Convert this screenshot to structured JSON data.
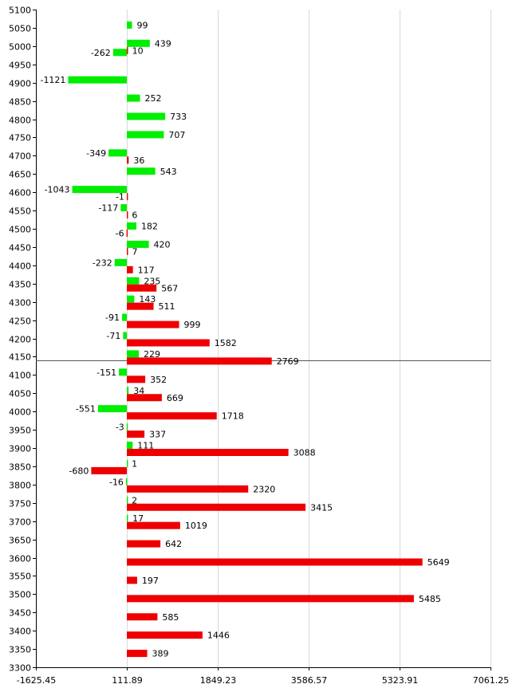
{
  "chart_data": {
    "type": "bar",
    "orientation": "horizontal",
    "grid": true,
    "xlim": [
      -1625.45,
      7061.25
    ],
    "ylim": [
      3300,
      5100
    ],
    "x_ticks": [
      "-1625.45",
      "111.89",
      "1849.23",
      "3586.57",
      "5323.91",
      "7061.25"
    ],
    "x_tick_values": [
      -1625.45,
      111.89,
      1849.23,
      3586.57,
      5323.91,
      7061.25
    ],
    "y_ticks": [
      5100,
      5050,
      5000,
      4950,
      4900,
      4850,
      4800,
      4750,
      4700,
      4650,
      4600,
      4550,
      4500,
      4450,
      4400,
      4350,
      4300,
      4250,
      4200,
      4150,
      4100,
      4050,
      4000,
      3950,
      3900,
      3850,
      3800,
      3750,
      3700,
      3650,
      3600,
      3550,
      3500,
      3450,
      3400,
      3350,
      3300
    ],
    "base_value": 111.89,
    "marker_price": 4140,
    "colors": {
      "green": "#00ee00",
      "red": "#ee0000"
    },
    "series": [
      {
        "color": "green",
        "points": [
          {
            "price": 5050,
            "value": 99
          },
          {
            "price": 5000,
            "value": 439
          },
          {
            "price": 4975,
            "value": -262
          },
          {
            "price": 4900,
            "value": -1121
          },
          {
            "price": 4850,
            "value": 252
          },
          {
            "price": 4800,
            "value": 733
          },
          {
            "price": 4750,
            "value": 707
          },
          {
            "price": 4700,
            "value": -349
          },
          {
            "price": 4650,
            "value": 543
          },
          {
            "price": 4600,
            "value": -1043
          },
          {
            "price": 4550,
            "value": -117
          },
          {
            "price": 4500,
            "value": 182
          },
          {
            "price": 4450,
            "value": 420
          },
          {
            "price": 4400,
            "value": -232
          },
          {
            "price": 4350,
            "value": 235
          },
          {
            "price": 4300,
            "value": 143
          },
          {
            "price": 4250,
            "value": -91
          },
          {
            "price": 4200,
            "value": -71
          },
          {
            "price": 4150,
            "value": 229
          },
          {
            "price": 4100,
            "value": -151
          },
          {
            "price": 4050,
            "value": 34
          },
          {
            "price": 4000,
            "value": -551
          },
          {
            "price": 3950,
            "value": -3
          },
          {
            "price": 3900,
            "value": 111
          },
          {
            "price": 3850,
            "value": 1
          },
          {
            "price": 3800,
            "value": -16
          },
          {
            "price": 3750,
            "value": 2
          },
          {
            "price": 3700,
            "value": 17
          }
        ]
      },
      {
        "color": "red",
        "points": [
          {
            "price": 5000,
            "value": 10
          },
          {
            "price": 4700,
            "value": 36
          },
          {
            "price": 4600,
            "value": -1
          },
          {
            "price": 4550,
            "value": 6
          },
          {
            "price": 4500,
            "value": -6
          },
          {
            "price": 4450,
            "value": 7
          },
          {
            "price": 4400,
            "value": 117
          },
          {
            "price": 4350,
            "value": 567
          },
          {
            "price": 4300,
            "value": 511
          },
          {
            "price": 4250,
            "value": 999
          },
          {
            "price": 4200,
            "value": 1582
          },
          {
            "price": 4150,
            "value": 2769
          },
          {
            "price": 4100,
            "value": 352
          },
          {
            "price": 4050,
            "value": 669
          },
          {
            "price": 4000,
            "value": 1718
          },
          {
            "price": 3950,
            "value": 337
          },
          {
            "price": 3900,
            "value": 3088
          },
          {
            "price": 3850,
            "value": -680
          },
          {
            "price": 3800,
            "value": 2320
          },
          {
            "price": 3750,
            "value": 3415
          },
          {
            "price": 3700,
            "value": 1019
          },
          {
            "price": 3650,
            "value": 642
          },
          {
            "price": 3600,
            "value": 5649
          },
          {
            "price": 3550,
            "value": 197
          },
          {
            "price": 3500,
            "value": 5485
          },
          {
            "price": 3450,
            "value": 585
          },
          {
            "price": 3400,
            "value": 1446
          },
          {
            "price": 3350,
            "value": 389
          }
        ]
      }
    ]
  }
}
